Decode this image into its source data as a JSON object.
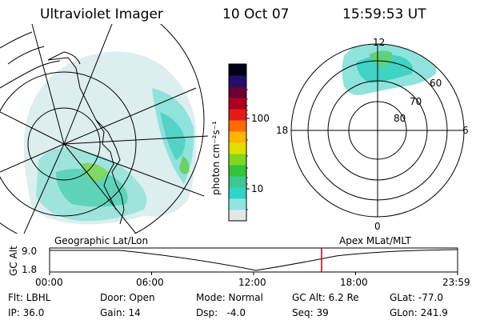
{
  "header": {
    "instrument": "Ultraviolet Imager",
    "date": "10 Oct 07",
    "time": "15:59:53 UT"
  },
  "colorbar": {
    "unit_label": "photon cm⁻²s⁻¹",
    "ticks": [
      "100",
      "10"
    ],
    "scale": "log",
    "colors": [
      "#e6e6e6",
      "#8fe6e0",
      "#2fd6c8",
      "#3cc98f",
      "#33c43a",
      "#7fd81f",
      "#e0e000",
      "#ffb400",
      "#ff6a00",
      "#e31a1a",
      "#b00020",
      "#6a0030",
      "#20106a",
      "#000018"
    ]
  },
  "polar_plot": {
    "mlt_labels": [
      "12",
      "18",
      "6",
      "0"
    ],
    "lat_labels": [
      "60",
      "70",
      "80"
    ]
  },
  "timeline": {
    "left_label": "Geographic Lat/Lon",
    "right_label": "Apex MLat/MLT",
    "y_axis_label": "GC Alt",
    "y_ticks": [
      "9.0",
      "1.8"
    ],
    "x_ticks": [
      "00:00",
      "06:00",
      "12:00",
      "18:00",
      "23:59"
    ],
    "current_time_hours": 16.0,
    "marker_color": "#cc0000"
  },
  "info": {
    "row1": {
      "filter": "Flt: LBHL",
      "door": "Door: Open",
      "mode": "Mode: Normal",
      "gc_alt": "GC Alt: 6.2 Re",
      "glat": "GLat: -77.0"
    },
    "row2": {
      "ip": "IP: 36.0",
      "gain": "Gain: 14",
      "dsp": "Dsp:   -4.0",
      "seq": "Seq: 39",
      "glon": "GLon: 241.9"
    }
  }
}
